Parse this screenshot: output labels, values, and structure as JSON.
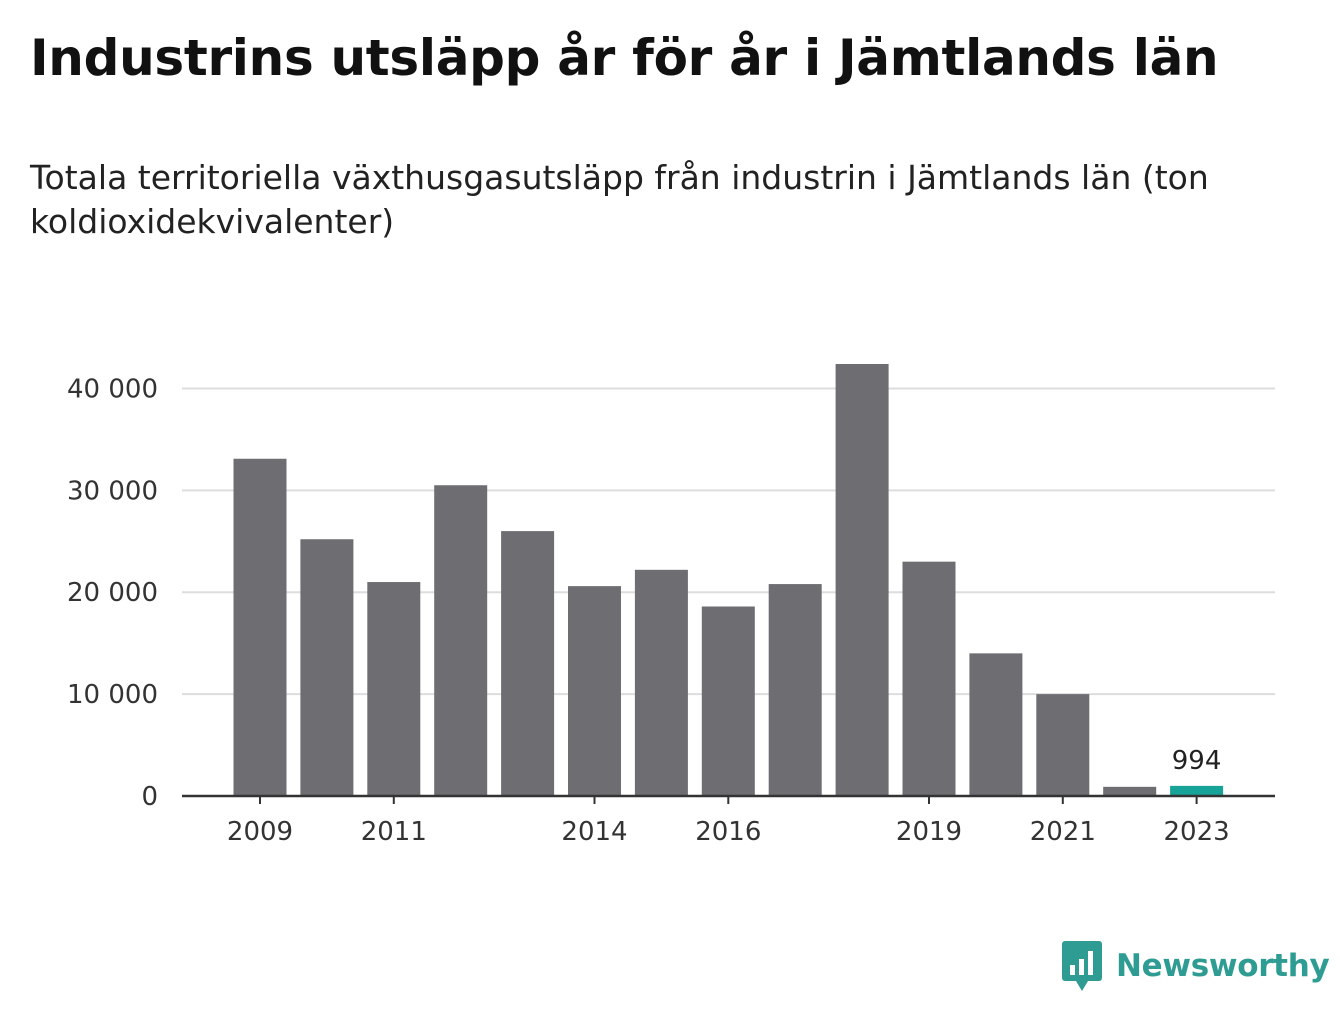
{
  "header": {
    "title": "Industrins utsläpp år för år i Jämtlands län",
    "subtitle": "Totala territoriella växthusgasutsläpp från industrin i Jämtlands län (ton koldioxidekvivalenter)"
  },
  "brand": {
    "name": "Newsworthy",
    "icon": "newsworthy-logo-icon",
    "color": "#2e9c92"
  },
  "colors": {
    "bar": "#6e6d72",
    "highlight": "#17a398",
    "grid": "#dddddd",
    "axis": "#333333"
  },
  "chart_data": {
    "type": "bar",
    "title": "Industrins utsläpp år för år i Jämtlands län",
    "subtitle": "Totala territoriella växthusgasutsläpp från industrin i Jämtlands län (ton koldioxidekvivalenter)",
    "xlabel": "",
    "ylabel": "",
    "categories": [
      2009,
      2010,
      2011,
      2012,
      2013,
      2014,
      2015,
      2016,
      2017,
      2018,
      2019,
      2020,
      2021,
      2022,
      2023
    ],
    "values": [
      33100,
      25200,
      21000,
      30500,
      26000,
      20600,
      22200,
      18600,
      20800,
      42400,
      23000,
      14000,
      10000,
      900,
      994
    ],
    "x_tick_labels": [
      "2009",
      "2011",
      "2014",
      "2016",
      "2019",
      "2021",
      "2023"
    ],
    "y_ticks": [
      0,
      10000,
      20000,
      30000,
      40000
    ],
    "y_tick_labels": [
      "0",
      "10 000",
      "20 000",
      "30 000",
      "40 000"
    ],
    "ylim": [
      0,
      42400
    ],
    "grid": true,
    "highlight": {
      "category": 2023,
      "label": "994"
    },
    "legend": "none"
  }
}
